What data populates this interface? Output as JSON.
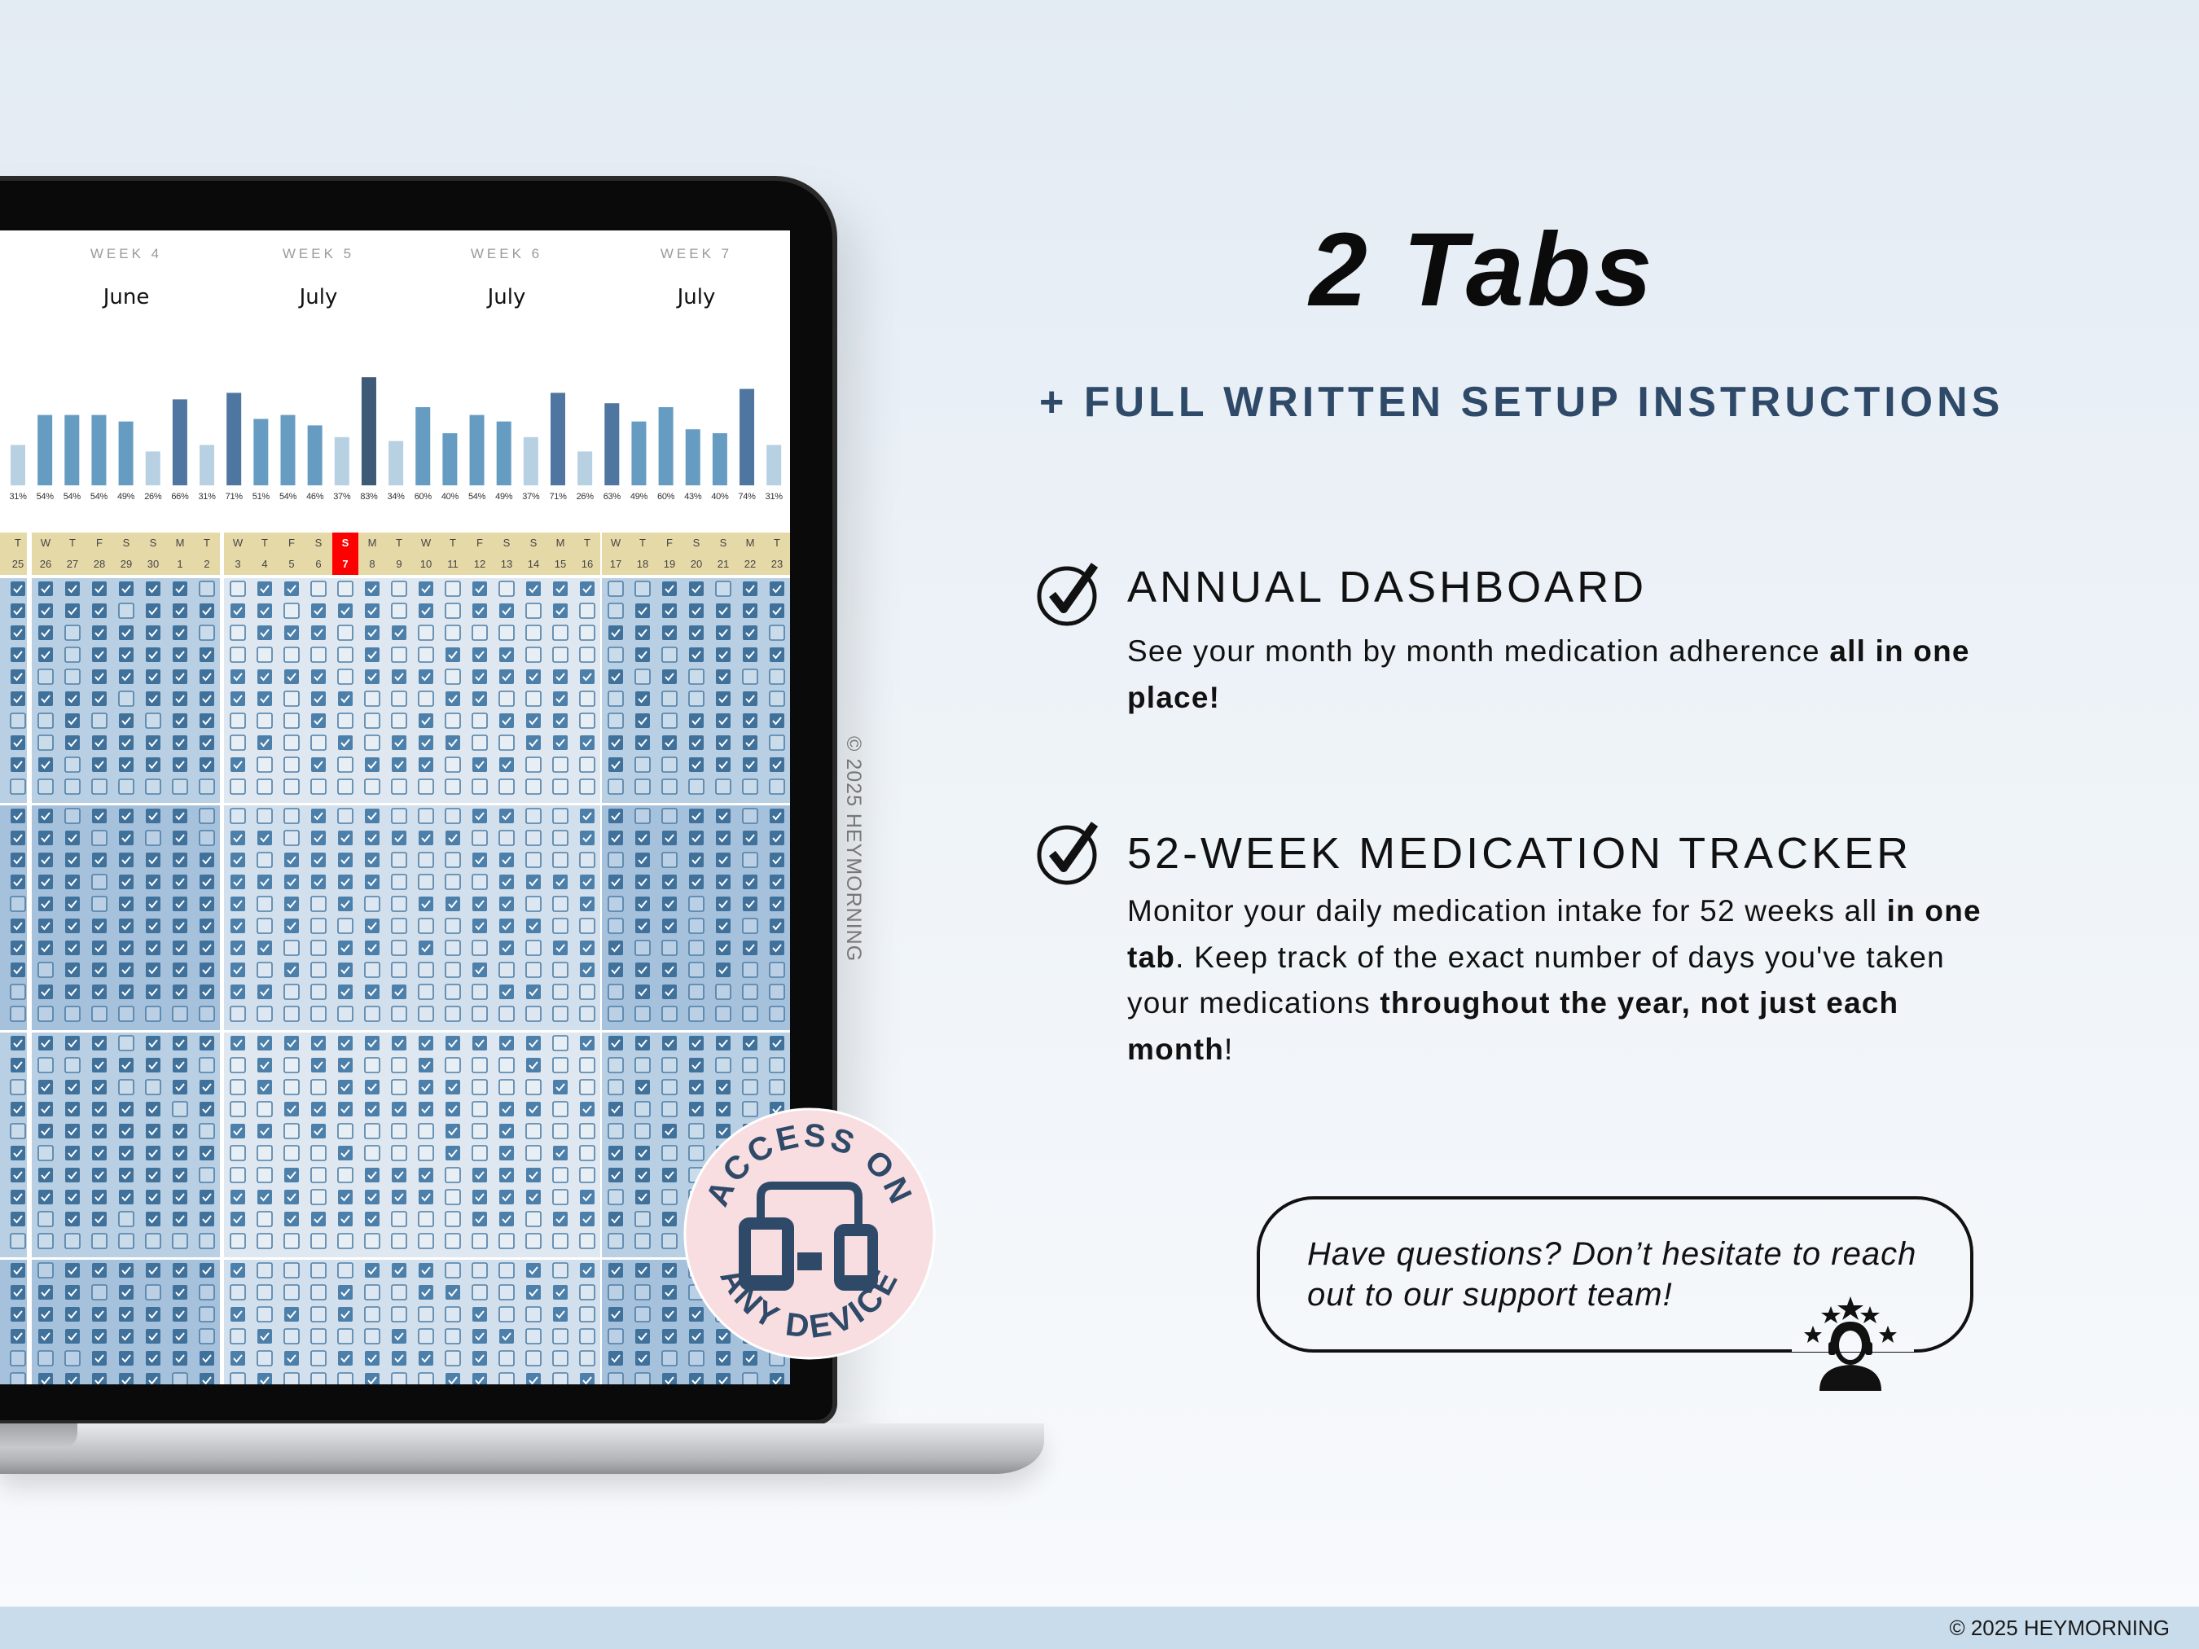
{
  "colors": {
    "accent_navy": "#2f4a68",
    "bar_light": "#b7d0e2",
    "bar_mid": "#679cc2",
    "bar_dark": "#4f76a0",
    "bar_darkest": "#3e5a77",
    "header_tan": "#e6d9a8",
    "highlight_red": "#ff0000",
    "checked_fill": "#40719a",
    "badge_pink": "#f8dde1"
  },
  "screen": {
    "weeks": [
      {
        "label": "WEEK 4",
        "month": "June"
      },
      {
        "label": "WEEK 5",
        "month": "July"
      },
      {
        "label": "WEEK 6",
        "month": "July"
      },
      {
        "label": "WEEK 7",
        "month": "July"
      }
    ],
    "daily_adherence": [
      "31%",
      "54%",
      "54%",
      "54%",
      "49%",
      "26%",
      "66%",
      "31%",
      "71%",
      "51%",
      "54%",
      "46%",
      "37%",
      "83%",
      "34%",
      "60%",
      "40%",
      "54%",
      "49%",
      "37%",
      "71%",
      "26%",
      "63%",
      "49%",
      "60%",
      "43%",
      "40%",
      "74%",
      "31%"
    ],
    "day_headers": [
      {
        "d": "T",
        "n": "25"
      },
      {
        "d": "W",
        "n": "26"
      },
      {
        "d": "T",
        "n": "27"
      },
      {
        "d": "F",
        "n": "28"
      },
      {
        "d": "S",
        "n": "29"
      },
      {
        "d": "S",
        "n": "30"
      },
      {
        "d": "M",
        "n": "1"
      },
      {
        "d": "T",
        "n": "2"
      },
      {
        "d": "W",
        "n": "3"
      },
      {
        "d": "T",
        "n": "4"
      },
      {
        "d": "F",
        "n": "5"
      },
      {
        "d": "S",
        "n": "6"
      },
      {
        "d": "S",
        "n": "7",
        "highlight": true
      },
      {
        "d": "M",
        "n": "8"
      },
      {
        "d": "T",
        "n": "9"
      },
      {
        "d": "W",
        "n": "10"
      },
      {
        "d": "T",
        "n": "11"
      },
      {
        "d": "F",
        "n": "12"
      },
      {
        "d": "S",
        "n": "13"
      },
      {
        "d": "S",
        "n": "14"
      },
      {
        "d": "M",
        "n": "15"
      },
      {
        "d": "T",
        "n": "16"
      },
      {
        "d": "W",
        "n": "17"
      },
      {
        "d": "T",
        "n": "18"
      },
      {
        "d": "F",
        "n": "19"
      },
      {
        "d": "S",
        "n": "20"
      },
      {
        "d": "S",
        "n": "21"
      },
      {
        "d": "M",
        "n": "22"
      },
      {
        "d": "T",
        "n": "23"
      }
    ],
    "watermark": "© 2025 HEYMORNING"
  },
  "badge": {
    "top_text": "ACCESS ON",
    "bottom_text": "ANY DEVICE",
    "icon": "devices-icon"
  },
  "headline": "2 Tabs",
  "subheadline": "+ FULL WRITTEN SETUP INSTRUCTIONS",
  "features": [
    {
      "icon": "check-circle-icon",
      "title": "ANNUAL DASHBOARD",
      "segments": [
        {
          "text": "See your month by month medication adherence ",
          "bold": false
        },
        {
          "text": "all in one place!",
          "bold": true
        }
      ]
    },
    {
      "icon": "check-circle-icon",
      "title": "52-WEEK MEDICATION TRACKER",
      "segments": [
        {
          "text": "Monitor your daily medication intake for 52 weeks all ",
          "bold": false
        },
        {
          "text": "in one tab",
          "bold": true
        },
        {
          "text": ". Keep track of the exact number of days you've taken your medications ",
          "bold": false
        },
        {
          "text": "throughout the year, not just each month",
          "bold": true
        },
        {
          "text": "!",
          "bold": false
        }
      ]
    }
  ],
  "support": {
    "text": "Have questions? Don’t hesitate to reach out to our support team!",
    "icon": "support-agent-icon"
  },
  "footer": {
    "copyright": "© 2025 HEYMORNING"
  }
}
